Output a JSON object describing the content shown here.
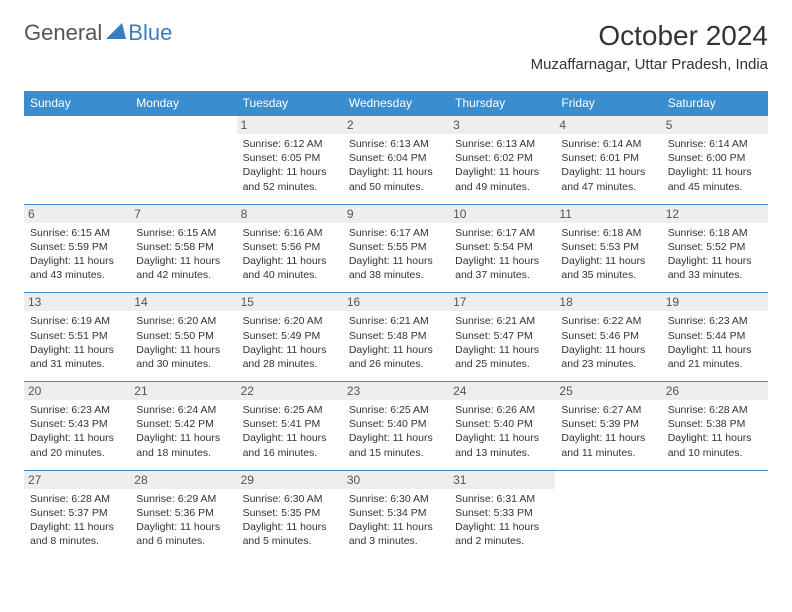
{
  "brand": {
    "part1": "General",
    "part2": "Blue"
  },
  "title": "October 2024",
  "location": "Muzaffarnagar, Uttar Pradesh, India",
  "colors": {
    "header_bg": "#3a8dce",
    "header_text": "#ffffff",
    "day_num_bg": "#eeeeee",
    "border": "#3a8dce",
    "brand_blue": "#3a7ebf"
  },
  "weekdays": [
    "Sunday",
    "Monday",
    "Tuesday",
    "Wednesday",
    "Thursday",
    "Friday",
    "Saturday"
  ],
  "weeks": [
    [
      null,
      null,
      {
        "n": "1",
        "sr": "6:12 AM",
        "ss": "6:05 PM",
        "dl": "11 hours and 52 minutes."
      },
      {
        "n": "2",
        "sr": "6:13 AM",
        "ss": "6:04 PM",
        "dl": "11 hours and 50 minutes."
      },
      {
        "n": "3",
        "sr": "6:13 AM",
        "ss": "6:02 PM",
        "dl": "11 hours and 49 minutes."
      },
      {
        "n": "4",
        "sr": "6:14 AM",
        "ss": "6:01 PM",
        "dl": "11 hours and 47 minutes."
      },
      {
        "n": "5",
        "sr": "6:14 AM",
        "ss": "6:00 PM",
        "dl": "11 hours and 45 minutes."
      }
    ],
    [
      {
        "n": "6",
        "sr": "6:15 AM",
        "ss": "5:59 PM",
        "dl": "11 hours and 43 minutes."
      },
      {
        "n": "7",
        "sr": "6:15 AM",
        "ss": "5:58 PM",
        "dl": "11 hours and 42 minutes."
      },
      {
        "n": "8",
        "sr": "6:16 AM",
        "ss": "5:56 PM",
        "dl": "11 hours and 40 minutes."
      },
      {
        "n": "9",
        "sr": "6:17 AM",
        "ss": "5:55 PM",
        "dl": "11 hours and 38 minutes."
      },
      {
        "n": "10",
        "sr": "6:17 AM",
        "ss": "5:54 PM",
        "dl": "11 hours and 37 minutes."
      },
      {
        "n": "11",
        "sr": "6:18 AM",
        "ss": "5:53 PM",
        "dl": "11 hours and 35 minutes."
      },
      {
        "n": "12",
        "sr": "6:18 AM",
        "ss": "5:52 PM",
        "dl": "11 hours and 33 minutes."
      }
    ],
    [
      {
        "n": "13",
        "sr": "6:19 AM",
        "ss": "5:51 PM",
        "dl": "11 hours and 31 minutes."
      },
      {
        "n": "14",
        "sr": "6:20 AM",
        "ss": "5:50 PM",
        "dl": "11 hours and 30 minutes."
      },
      {
        "n": "15",
        "sr": "6:20 AM",
        "ss": "5:49 PM",
        "dl": "11 hours and 28 minutes."
      },
      {
        "n": "16",
        "sr": "6:21 AM",
        "ss": "5:48 PM",
        "dl": "11 hours and 26 minutes."
      },
      {
        "n": "17",
        "sr": "6:21 AM",
        "ss": "5:47 PM",
        "dl": "11 hours and 25 minutes."
      },
      {
        "n": "18",
        "sr": "6:22 AM",
        "ss": "5:46 PM",
        "dl": "11 hours and 23 minutes."
      },
      {
        "n": "19",
        "sr": "6:23 AM",
        "ss": "5:44 PM",
        "dl": "11 hours and 21 minutes."
      }
    ],
    [
      {
        "n": "20",
        "sr": "6:23 AM",
        "ss": "5:43 PM",
        "dl": "11 hours and 20 minutes."
      },
      {
        "n": "21",
        "sr": "6:24 AM",
        "ss": "5:42 PM",
        "dl": "11 hours and 18 minutes."
      },
      {
        "n": "22",
        "sr": "6:25 AM",
        "ss": "5:41 PM",
        "dl": "11 hours and 16 minutes."
      },
      {
        "n": "23",
        "sr": "6:25 AM",
        "ss": "5:40 PM",
        "dl": "11 hours and 15 minutes."
      },
      {
        "n": "24",
        "sr": "6:26 AM",
        "ss": "5:40 PM",
        "dl": "11 hours and 13 minutes."
      },
      {
        "n": "25",
        "sr": "6:27 AM",
        "ss": "5:39 PM",
        "dl": "11 hours and 11 minutes."
      },
      {
        "n": "26",
        "sr": "6:28 AM",
        "ss": "5:38 PM",
        "dl": "11 hours and 10 minutes."
      }
    ],
    [
      {
        "n": "27",
        "sr": "6:28 AM",
        "ss": "5:37 PM",
        "dl": "11 hours and 8 minutes."
      },
      {
        "n": "28",
        "sr": "6:29 AM",
        "ss": "5:36 PM",
        "dl": "11 hours and 6 minutes."
      },
      {
        "n": "29",
        "sr": "6:30 AM",
        "ss": "5:35 PM",
        "dl": "11 hours and 5 minutes."
      },
      {
        "n": "30",
        "sr": "6:30 AM",
        "ss": "5:34 PM",
        "dl": "11 hours and 3 minutes."
      },
      {
        "n": "31",
        "sr": "6:31 AM",
        "ss": "5:33 PM",
        "dl": "11 hours and 2 minutes."
      },
      null,
      null
    ]
  ],
  "labels": {
    "sunrise": "Sunrise:",
    "sunset": "Sunset:",
    "daylight": "Daylight:"
  }
}
